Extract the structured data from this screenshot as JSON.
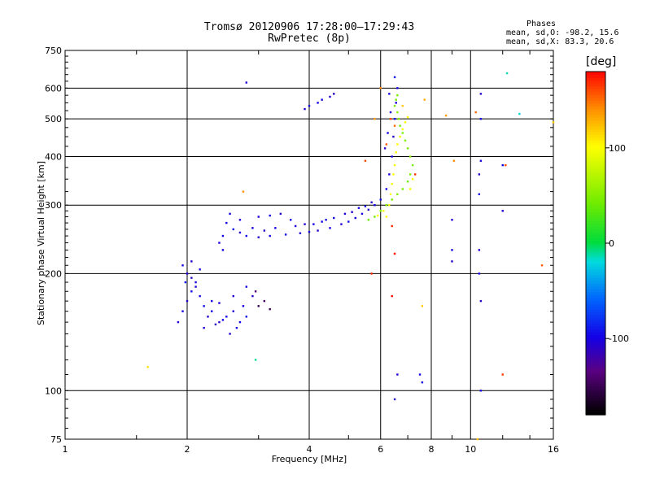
{
  "chart_data": {
    "type": "scatter",
    "title": "Tromsø 20120906 17:28:00–17:29:43",
    "subtitle": "RwPretec (8p)",
    "xlabel": "Frequency [MHz]",
    "ylabel": "Stationary phase Virtual Height [km]",
    "x_scale": "log",
    "y_scale": "log",
    "xlim": [
      1,
      16
    ],
    "ylim": [
      75,
      750
    ],
    "x_ticks": [
      1,
      2,
      4,
      6,
      8,
      10,
      16
    ],
    "x_tick_labels": [
      "1",
      "2",
      "4",
      "6",
      "8",
      "10",
      "16"
    ],
    "y_ticks": [
      75,
      100,
      200,
      300,
      400,
      500,
      600,
      750
    ],
    "y_tick_labels": [
      "75",
      "100",
      "200",
      "300",
      "400",
      "500",
      "600",
      "750"
    ],
    "grid": true,
    "stats": {
      "heading": "Phases",
      "line_o": "mean, sd,O: -98.2, 15.6",
      "line_x": "mean, sd,X: 83.3, 20.6"
    },
    "colorbar": {
      "label": "[deg]",
      "range": [
        -180,
        180
      ],
      "ticks": [
        -100,
        0,
        100
      ],
      "tick_labels": [
        "-100",
        "0",
        "100"
      ]
    },
    "series": [
      {
        "points": [
          [
            1.9,
            150,
            -105
          ],
          [
            1.95,
            160,
            -100
          ],
          [
            2.0,
            170,
            -110
          ],
          [
            2.05,
            180,
            -95
          ],
          [
            2.1,
            190,
            -100
          ],
          [
            2.0,
            200,
            -105
          ],
          [
            1.95,
            210,
            -100
          ],
          [
            2.05,
            195,
            -110
          ],
          [
            2.15,
            175,
            -100
          ],
          [
            2.2,
            165,
            -95
          ],
          [
            2.25,
            155,
            -105
          ],
          [
            2.3,
            160,
            -100
          ],
          [
            2.4,
            150,
            -110
          ],
          [
            2.5,
            155,
            -100
          ],
          [
            2.6,
            160,
            -105
          ],
          [
            2.7,
            150,
            -100
          ],
          [
            2.8,
            155,
            -95
          ],
          [
            2.2,
            145,
            -105
          ],
          [
            2.35,
            148,
            -110
          ],
          [
            2.45,
            152,
            -100
          ],
          [
            2.1,
            185,
            -105
          ],
          [
            2.15,
            205,
            -100
          ],
          [
            2.05,
            215,
            -110
          ],
          [
            1.98,
            190,
            -95
          ],
          [
            2.3,
            170,
            -100
          ],
          [
            2.6,
            175,
            -105
          ],
          [
            2.75,
            165,
            -100
          ],
          [
            2.55,
            140,
            -110
          ],
          [
            2.65,
            145,
            -100
          ],
          [
            2.4,
            168,
            -105
          ],
          [
            2.5,
            270,
            -100
          ],
          [
            2.6,
            260,
            -95
          ],
          [
            2.7,
            255,
            -105
          ],
          [
            2.8,
            250,
            -100
          ],
          [
            3.0,
            248,
            -110
          ],
          [
            3.2,
            250,
            -100
          ],
          [
            3.5,
            252,
            -95
          ],
          [
            3.8,
            254,
            -105
          ],
          [
            4.0,
            256,
            -100
          ],
          [
            4.2,
            258,
            -110
          ],
          [
            4.5,
            262,
            -100
          ],
          [
            4.8,
            268,
            -105
          ],
          [
            5.0,
            272,
            -95
          ],
          [
            5.2,
            278,
            -100
          ],
          [
            5.4,
            285,
            -105
          ],
          [
            5.6,
            292,
            -110
          ],
          [
            5.8,
            300,
            -100
          ],
          [
            6.0,
            310,
            -95
          ],
          [
            6.2,
            330,
            -100
          ],
          [
            6.3,
            360,
            -105
          ],
          [
            6.4,
            400,
            -100
          ],
          [
            6.45,
            450,
            -110
          ],
          [
            6.5,
            500,
            -100
          ],
          [
            6.55,
            550,
            -105
          ],
          [
            6.6,
            600,
            -100
          ],
          [
            6.5,
            640,
            -95
          ],
          [
            6.35,
            520,
            -105
          ],
          [
            6.25,
            460,
            -100
          ],
          [
            6.15,
            420,
            -110
          ],
          [
            6.3,
            580,
            -100
          ],
          [
            3.0,
            280,
            -105
          ],
          [
            3.2,
            282,
            -100
          ],
          [
            3.4,
            285,
            -110
          ],
          [
            3.6,
            275,
            -100
          ],
          [
            3.9,
            268,
            -105
          ],
          [
            4.3,
            272,
            -100
          ],
          [
            4.6,
            278,
            -95
          ],
          [
            4.9,
            285,
            -105
          ],
          [
            5.3,
            295,
            -100
          ],
          [
            5.7,
            305,
            -110
          ],
          [
            2.55,
            285,
            -100
          ],
          [
            2.7,
            275,
            -105
          ],
          [
            2.9,
            262,
            -100
          ],
          [
            3.1,
            258,
            -110
          ],
          [
            3.3,
            262,
            -100
          ],
          [
            3.7,
            265,
            -105
          ],
          [
            4.1,
            268,
            -100
          ],
          [
            4.4,
            275,
            -95
          ],
          [
            5.1,
            288,
            -105
          ],
          [
            5.5,
            298,
            -100
          ],
          [
            3.0,
            165,
            -150
          ],
          [
            3.1,
            170,
            -145
          ],
          [
            3.2,
            162,
            -150
          ],
          [
            2.95,
            180,
            -140
          ],
          [
            4.3,
            560,
            -100
          ],
          [
            4.5,
            570,
            -105
          ],
          [
            4.2,
            550,
            -100
          ],
          [
            4.6,
            580,
            -110
          ],
          [
            4.0,
            540,
            -100
          ],
          [
            3.9,
            530,
            -105
          ],
          [
            2.8,
            620,
            -105
          ],
          [
            2.8,
            185,
            -100
          ],
          [
            2.9,
            175,
            -110
          ],
          [
            2.45,
            230,
            -100
          ],
          [
            2.4,
            240,
            -105
          ],
          [
            2.45,
            250,
            -100
          ],
          [
            6.6,
            110,
            -105
          ],
          [
            6.5,
            95,
            -110
          ],
          [
            7.5,
            110,
            -100
          ],
          [
            7.6,
            105,
            -100
          ],
          [
            9.0,
            230,
            -100
          ],
          [
            9.0,
            275,
            -105
          ],
          [
            9.0,
            215,
            -110
          ],
          [
            10.5,
            200,
            -100
          ],
          [
            10.5,
            230,
            -105
          ],
          [
            10.5,
            320,
            -100
          ],
          [
            10.5,
            360,
            -110
          ],
          [
            10.6,
            500,
            -100
          ],
          [
            10.6,
            580,
            -105
          ],
          [
            10.6,
            390,
            -100
          ],
          [
            12.0,
            380,
            -100
          ],
          [
            12.0,
            290,
            -105
          ],
          [
            10.6,
            170,
            -110
          ],
          [
            10.6,
            100,
            -100
          ]
        ]
      },
      {
        "points": [
          [
            5.6,
            275,
            40
          ],
          [
            5.8,
            280,
            45
          ],
          [
            6.0,
            290,
            50
          ],
          [
            6.2,
            300,
            48
          ],
          [
            6.4,
            310,
            42
          ],
          [
            6.6,
            320,
            50
          ],
          [
            6.8,
            330,
            45
          ],
          [
            7.0,
            345,
            40
          ],
          [
            7.1,
            360,
            48
          ],
          [
            7.2,
            380,
            45
          ],
          [
            7.1,
            400,
            50
          ],
          [
            7.0,
            420,
            42
          ],
          [
            6.9,
            440,
            48
          ],
          [
            6.8,
            460,
            45
          ],
          [
            6.7,
            480,
            40
          ],
          [
            6.65,
            500,
            45
          ],
          [
            6.6,
            520,
            50
          ],
          [
            6.5,
            540,
            48
          ],
          [
            6.55,
            560,
            42
          ],
          [
            6.6,
            575,
            45
          ],
          [
            6.3,
            300,
            95
          ],
          [
            6.35,
            320,
            98
          ],
          [
            6.4,
            340,
            95
          ],
          [
            6.45,
            360,
            100
          ],
          [
            6.5,
            380,
            95
          ],
          [
            6.55,
            410,
            98
          ],
          [
            6.6,
            430,
            100
          ],
          [
            6.7,
            450,
            95
          ],
          [
            6.8,
            470,
            98
          ],
          [
            6.9,
            490,
            95
          ],
          [
            7.0,
            505,
            100
          ],
          [
            7.1,
            330,
            95
          ],
          [
            7.2,
            350,
            98
          ],
          [
            6.2,
            280,
            100
          ],
          [
            6.1,
            290,
            95
          ],
          [
            5.9,
            282,
            100
          ]
        ]
      },
      {
        "points": [
          [
            1.6,
            115,
            110
          ],
          [
            2.75,
            325,
            140
          ],
          [
            6.35,
            500,
            160
          ],
          [
            6.5,
            480,
            150
          ],
          [
            6.2,
            430,
            155
          ],
          [
            5.5,
            390,
            160
          ],
          [
            6.8,
            540,
            120
          ],
          [
            7.7,
            560,
            130
          ],
          [
            8.7,
            510,
            135
          ],
          [
            9.1,
            390,
            140
          ],
          [
            10.3,
            520,
            150
          ],
          [
            12.2,
            380,
            160
          ],
          [
            6.4,
            265,
            170
          ],
          [
            6.5,
            225,
            175
          ],
          [
            5.7,
            200,
            170
          ],
          [
            6.4,
            175,
            180
          ],
          [
            7.3,
            360,
            165
          ],
          [
            7.6,
            165,
            120
          ],
          [
            15.0,
            210,
            155
          ],
          [
            16.0,
            490,
            120
          ],
          [
            12.0,
            110,
            165
          ],
          [
            10.4,
            75,
            120
          ],
          [
            12.3,
            655,
            -15
          ],
          [
            13.2,
            515,
            -20
          ],
          [
            2.95,
            120,
            -10
          ],
          [
            5.8,
            500,
            135
          ],
          [
            6.0,
            600,
            140
          ]
        ]
      }
    ]
  }
}
